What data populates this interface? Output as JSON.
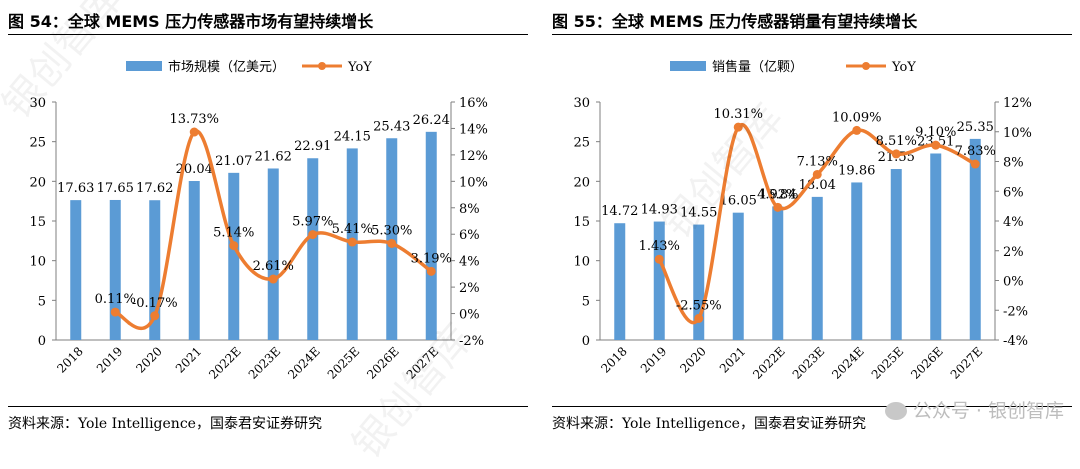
{
  "figures": [
    {
      "title": "图 54：全球 MEMS 压力传感器市场有望持续增长",
      "source": "资料来源：Yole Intelligence，国泰君安证券研究"
    },
    {
      "title": "图 55：全球 MEMS 压力传感器销量有望持续增长",
      "source": "资料来源：Yole Intelligence，国泰君安证券研究"
    }
  ],
  "watermark": "公众号 · 银创智库",
  "diagonal_watermark": "银创智库",
  "chart_data": [
    {
      "type": "bar",
      "categories": [
        "2018",
        "2019",
        "2020",
        "2021",
        "2022E",
        "2023E",
        "2024E",
        "2025E",
        "2026E",
        "2027E"
      ],
      "series": [
        {
          "name": "市场规模（亿美元）",
          "type": "bar",
          "axis": "left",
          "values": [
            17.63,
            17.65,
            17.62,
            20.04,
            21.07,
            21.62,
            22.91,
            24.15,
            25.43,
            26.24
          ],
          "labels": [
            "17.63",
            "17.65",
            "17.62",
            "20.04",
            "21.07",
            "21.62",
            "22.91",
            "24.15",
            "25.43",
            "26.24"
          ]
        },
        {
          "name": "YoY",
          "type": "line",
          "smooth": true,
          "axis": "right",
          "x": [
            "2019",
            "2020",
            "2021",
            "2022E",
            "2023E",
            "2024E",
            "2025E",
            "2026E",
            "2027E"
          ],
          "values": [
            0.11,
            -0.17,
            13.73,
            5.14,
            2.61,
            5.97,
            5.41,
            5.3,
            3.19
          ],
          "labels": [
            "0.11%",
            "-0.17%",
            "13.73%",
            "5.14%",
            "2.61%",
            "5.97%",
            "5.41%",
            "5.30%",
            "3.19%"
          ]
        }
      ],
      "left_axis": {
        "ylim": [
          0,
          30
        ],
        "ticks": [
          "0",
          "5",
          "10",
          "15",
          "20",
          "25",
          "30"
        ]
      },
      "right_axis": {
        "ylim": [
          -2,
          16
        ],
        "ticks": [
          "-2%",
          "0%",
          "2%",
          "4%",
          "6%",
          "8%",
          "10%",
          "12%",
          "14%",
          "16%"
        ]
      },
      "legend": "top-center",
      "grid": false,
      "colors": {
        "bar": "#5b9bd5",
        "line": "#ed7d31"
      }
    },
    {
      "type": "bar",
      "categories": [
        "2018",
        "2019",
        "2020",
        "2021",
        "2022E",
        "2023E",
        "2024E",
        "2025E",
        "2026E",
        "2027E"
      ],
      "series": [
        {
          "name": "销售量（亿颗）",
          "type": "bar",
          "axis": "left",
          "values": [
            14.72,
            14.93,
            14.55,
            16.05,
            16.84,
            18.04,
            19.86,
            21.55,
            23.51,
            25.35
          ],
          "labels": [
            "14.72",
            "14.93",
            "14.55",
            "16.05",
            "16.84",
            "18.04",
            "19.86",
            "21.55",
            "23.51",
            "25.35"
          ]
        },
        {
          "name": "YoY",
          "type": "line",
          "smooth": true,
          "axis": "right",
          "x": [
            "2019",
            "2020",
            "2021",
            "2022E",
            "2023E",
            "2024E",
            "2025E",
            "2026E",
            "2027E"
          ],
          "values": [
            1.43,
            -2.55,
            10.31,
            4.92,
            7.13,
            10.09,
            8.51,
            9.1,
            7.83
          ],
          "labels": [
            "1.43%",
            "-2.55%",
            "10.31%",
            "4.92%",
            "7.13%",
            "10.09%",
            "8.51%",
            "9.10%",
            "7.83%"
          ]
        }
      ],
      "left_axis": {
        "ylim": [
          0,
          30
        ],
        "ticks": [
          "0",
          "5",
          "10",
          "15",
          "20",
          "25",
          "30"
        ]
      },
      "right_axis": {
        "ylim": [
          -4,
          12
        ],
        "ticks": [
          "-4%",
          "-2%",
          "0%",
          "2%",
          "4%",
          "6%",
          "8%",
          "10%",
          "12%"
        ]
      },
      "legend": "top-center",
      "grid": false,
      "colors": {
        "bar": "#5b9bd5",
        "line": "#ed7d31"
      }
    }
  ]
}
